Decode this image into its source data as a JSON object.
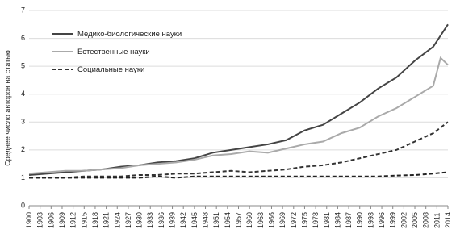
{
  "chart_data": {
    "type": "line",
    "y_label": "Среднее число авторов на статью",
    "x": [
      1900,
      1905,
      1910,
      1915,
      1920,
      1925,
      1930,
      1935,
      1940,
      1945,
      1950,
      1955,
      1960,
      1965,
      1970,
      1975,
      1980,
      1985,
      1990,
      1995,
      2000,
      2005,
      2010,
      2012,
      2014
    ],
    "series": [
      {
        "name": "Медико-биологические науки",
        "color": "#444444",
        "dash": false,
        "values": [
          1.1,
          1.15,
          1.2,
          1.25,
          1.3,
          1.4,
          1.45,
          1.55,
          1.6,
          1.7,
          1.9,
          2.0,
          2.1,
          2.2,
          2.35,
          2.7,
          2.9,
          3.3,
          3.7,
          4.2,
          4.6,
          5.2,
          5.7,
          6.1,
          6.5
        ]
      },
      {
        "name": "Естественные науки",
        "color": "#aaaaaa",
        "dash": false,
        "values": [
          1.15,
          1.2,
          1.25,
          1.25,
          1.3,
          1.35,
          1.45,
          1.5,
          1.55,
          1.65,
          1.8,
          1.85,
          1.95,
          1.9,
          2.05,
          2.2,
          2.3,
          2.6,
          2.8,
          3.2,
          3.5,
          3.9,
          4.3,
          5.3,
          5.05
        ]
      },
      {
        "name": "Социальные науки",
        "color": "#333333",
        "dash": true,
        "values": [
          1.0,
          1.0,
          1.0,
          1.05,
          1.05,
          1.05,
          1.1,
          1.1,
          1.15,
          1.15,
          1.2,
          1.25,
          1.2,
          1.25,
          1.3,
          1.4,
          1.45,
          1.55,
          1.7,
          1.85,
          2.0,
          2.3,
          2.6,
          2.8,
          3.0
        ]
      },
      {
        "color": "#222222",
        "dash": true,
        "values": [
          1.0,
          1.0,
          1.0,
          1.0,
          1.0,
          1.0,
          1.0,
          1.05,
          1.0,
          1.05,
          1.05,
          1.05,
          1.05,
          1.05,
          1.05,
          1.05,
          1.05,
          1.05,
          1.05,
          1.05,
          1.08,
          1.1,
          1.15,
          1.18,
          1.2
        ]
      }
    ],
    "xlim": [
      1900,
      2014
    ],
    "xticks": [
      1900,
      1903,
      1906,
      1909,
      1912,
      1915,
      1918,
      1921,
      1924,
      1927,
      1930,
      1933,
      1936,
      1939,
      1942,
      1945,
      1948,
      1951,
      1954,
      1957,
      1960,
      1963,
      1966,
      1969,
      1972,
      1975,
      1978,
      1981,
      1984,
      1987,
      1990,
      1993,
      1996,
      1999,
      2002,
      2005,
      2008,
      2011,
      2014
    ],
    "ylim": [
      0,
      7
    ],
    "yticks": [
      0,
      1,
      2,
      3,
      4,
      5,
      6,
      7
    ],
    "grid": true
  }
}
